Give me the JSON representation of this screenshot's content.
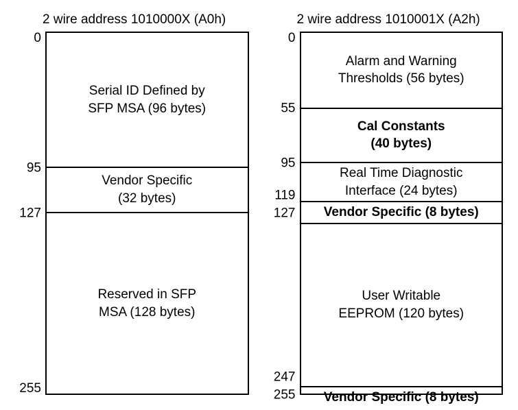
{
  "layout": {
    "total_units": 256,
    "border_color": "#000000",
    "background": "#ffffff",
    "font_family": "Arial",
    "title_fontsize": 19,
    "body_fontsize": 19
  },
  "left": {
    "title": "2 wire address 1010000X (A0h)",
    "ticks": [
      {
        "value": "0",
        "at": 0
      },
      {
        "value": "95",
        "at": 95
      },
      {
        "value": "127",
        "at": 127
      },
      {
        "value": "255",
        "at": 255
      }
    ],
    "segments": [
      {
        "line1": "Serial ID Defined by",
        "line2": "SFP MSA (96 bytes)",
        "span": 96,
        "bold": false
      },
      {
        "line1": "Vendor Specific",
        "line2": "(32 bytes)",
        "span": 32,
        "bold": false
      },
      {
        "line1": "Reserved in SFP",
        "line2": "MSA (128 bytes)",
        "span": 128,
        "bold": false
      }
    ]
  },
  "right": {
    "title": "2 wire address 1010001X (A2h)",
    "ticks": [
      {
        "value": "0",
        "at": 0
      },
      {
        "value": "55",
        "at": 55
      },
      {
        "value": "95",
        "at": 95
      },
      {
        "value": "119",
        "at": 119
      },
      {
        "value": "127",
        "at": 127
      },
      {
        "value": "247",
        "at": 247
      },
      {
        "value": "255",
        "at": 255
      }
    ],
    "segments": [
      {
        "line1": "Alarm and Warning",
        "line2": "Thresholds (56 bytes)",
        "span": 56,
        "bold": false
      },
      {
        "line1": "Cal Constants",
        "line2": "(40 bytes)",
        "span": 40,
        "bold": true
      },
      {
        "line1": "Real Time Diagnostic",
        "line2": "Interface (24 bytes)",
        "span": 24,
        "bold": false
      },
      {
        "line1": "Vendor Specific (8 bytes)",
        "line2": "",
        "span": 8,
        "bold": true
      },
      {
        "line1": "User Writable",
        "line2": "EEPROM (120 bytes)",
        "span": 120,
        "bold": false
      },
      {
        "line1": "Vendor Specific (8 bytes)",
        "line2": "",
        "span": 8,
        "bold": true
      }
    ]
  }
}
